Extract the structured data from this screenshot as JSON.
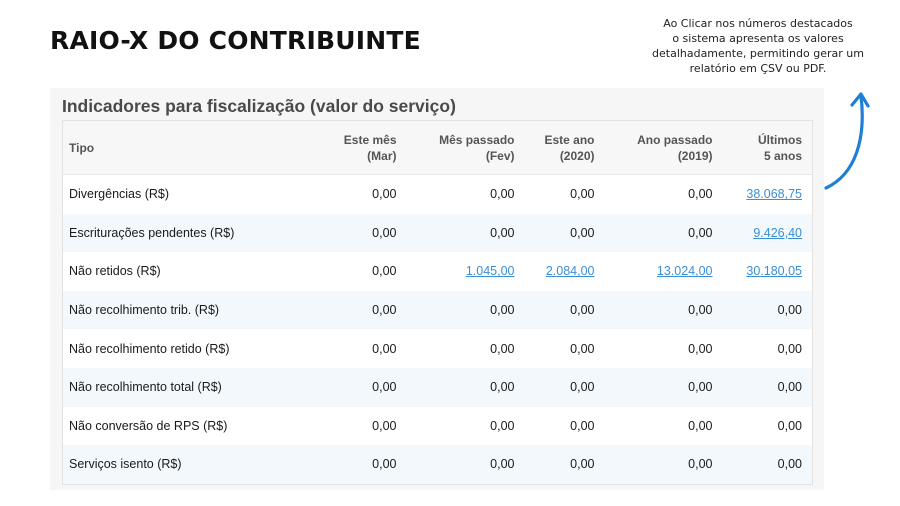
{
  "header": {
    "title": "RAIO-X DO CONTRIBUINTE"
  },
  "note": {
    "lines": [
      "Ao Clicar nos números destacados",
      "o sistema apresenta os valores",
      "detalhadamente, permitindo gerar um",
      "relatório em ÇSV ou PDF."
    ]
  },
  "panel": {
    "title": "Indicadores para fiscalização (valor do serviço)",
    "columns": [
      {
        "l1": "Tipo",
        "l2": ""
      },
      {
        "l1": "Este mês",
        "l2": "(Mar)"
      },
      {
        "l1": "Mês passado",
        "l2": "(Fev)"
      },
      {
        "l1": "Este ano",
        "l2": "(2020)"
      },
      {
        "l1": "Ano passado",
        "l2": "(2019)"
      },
      {
        "l1": "Últimos",
        "l2": "5 anos"
      }
    ],
    "rows": [
      {
        "label": "Divergências (R$)",
        "values": [
          "0,00",
          "0,00",
          "0,00",
          "0,00",
          "38.068,75"
        ],
        "links": [
          false,
          false,
          false,
          false,
          true
        ]
      },
      {
        "label": "Escriturações pendentes (R$)",
        "values": [
          "0,00",
          "0,00",
          "0,00",
          "0,00",
          "9.426,40"
        ],
        "links": [
          false,
          false,
          false,
          false,
          true
        ]
      },
      {
        "label": "Não retidos (R$)",
        "values": [
          "0,00",
          "1.045,00",
          "2.084,00",
          "13.024,00",
          "30.180,05"
        ],
        "links": [
          false,
          true,
          true,
          true,
          true
        ]
      },
      {
        "label": "Não recolhimento trib. (R$)",
        "values": [
          "0,00",
          "0,00",
          "0,00",
          "0,00",
          "0,00"
        ],
        "links": [
          false,
          false,
          false,
          false,
          false
        ]
      },
      {
        "label": "Não recolhimento retido (R$)",
        "values": [
          "0,00",
          "0,00",
          "0,00",
          "0,00",
          "0,00"
        ],
        "links": [
          false,
          false,
          false,
          false,
          false
        ]
      },
      {
        "label": "Não recolhimento total (R$)",
        "values": [
          "0,00",
          "0,00",
          "0,00",
          "0,00",
          "0,00"
        ],
        "links": [
          false,
          false,
          false,
          false,
          false
        ]
      },
      {
        "label": "Não conversão de RPS (R$)",
        "values": [
          "0,00",
          "0,00",
          "0,00",
          "0,00",
          "0,00"
        ],
        "links": [
          false,
          false,
          false,
          false,
          false
        ]
      },
      {
        "label": "Serviços isento (R$)",
        "values": [
          "0,00",
          "0,00",
          "0,00",
          "0,00",
          "0,00"
        ],
        "links": [
          false,
          false,
          false,
          false,
          false
        ]
      }
    ]
  },
  "colors": {
    "link": "#3a8fd6",
    "arrow": "#1f7fd6",
    "row_alt": "#f2f8fc"
  }
}
